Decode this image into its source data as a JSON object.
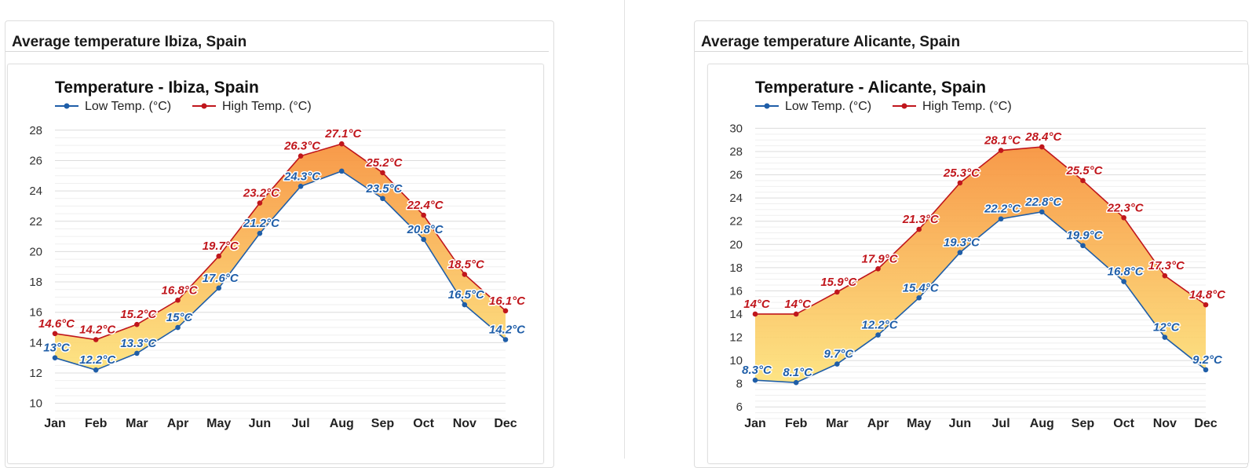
{
  "panels": [
    {
      "heading": "Average temperature Ibiza, Spain",
      "chart_title": "Temperature - Ibiza, Spain"
    },
    {
      "heading": "Average temperature Alicante, Spain",
      "chart_title": "Temperature - Alicante, Spain"
    }
  ],
  "legend": {
    "low": "Low Temp. (°C)",
    "high": "High Temp. (°C)"
  },
  "colors": {
    "low": "#1f5ea8",
    "high": "#c0161c",
    "fill_top": "#f7913a",
    "fill_bottom": "#fde27a"
  },
  "chart_data": [
    {
      "type": "area",
      "title": "Temperature - Ibiza, Spain",
      "categories": [
        "Jan",
        "Feb",
        "Mar",
        "Apr",
        "May",
        "Jun",
        "Jul",
        "Aug",
        "Sep",
        "Oct",
        "Nov",
        "Dec"
      ],
      "series": [
        {
          "name": "Low Temp. (°C)",
          "values": [
            13,
            12.2,
            13.3,
            15,
            17.6,
            21.2,
            24.3,
            25.3,
            23.5,
            20.8,
            16.5,
            14.2
          ],
          "labels": [
            "13°C",
            "12.2°C",
            "13.3°C",
            "15°C",
            "17.6°C",
            "21.2°C",
            "24.3°C",
            "",
            "23.5°C",
            "20.8°C",
            "16.5°C",
            "14.2°C"
          ]
        },
        {
          "name": "High Temp. (°C)",
          "values": [
            14.6,
            14.2,
            15.2,
            16.8,
            19.7,
            23.2,
            26.3,
            27.1,
            25.2,
            22.4,
            18.5,
            16.1
          ],
          "labels": [
            "14.6°C",
            "14.2°C",
            "15.2°C",
            "16.8°C",
            "19.7°C",
            "23.2°C",
            "26.3°C",
            "27.1°C",
            "25.2°C",
            "22.4°C",
            "18.5°C",
            "16.1°C"
          ]
        }
      ],
      "yticks": [
        10,
        12,
        14,
        16,
        18,
        20,
        22,
        24,
        26,
        28
      ],
      "ylim": [
        9,
        28.3
      ],
      "legend_position": "top-left",
      "grid": true
    },
    {
      "type": "area",
      "title": "Temperature - Alicante, Spain",
      "categories": [
        "Jan",
        "Feb",
        "Mar",
        "Apr",
        "May",
        "Jun",
        "Jul",
        "Aug",
        "Sep",
        "Oct",
        "Nov",
        "Dec"
      ],
      "series": [
        {
          "name": "Low Temp. (°C)",
          "values": [
            8.3,
            8.1,
            9.7,
            12.2,
            15.4,
            19.3,
            22.2,
            22.8,
            19.9,
            16.8,
            12,
            9.2
          ],
          "labels": [
            "8.3°C",
            "8.1°C",
            "9.7°C",
            "12.2°C",
            "15.4°C",
            "19.3°C",
            "22.2°C",
            "22.8°C",
            "19.9°C",
            "16.8°C",
            "12°C",
            "9.2°C"
          ]
        },
        {
          "name": "High Temp. (°C)",
          "values": [
            14,
            14,
            15.9,
            17.9,
            21.3,
            25.3,
            28.1,
            28.4,
            25.5,
            22.3,
            17.3,
            14.8
          ],
          "labels": [
            "14°C",
            "14°C",
            "15.9°C",
            "17.9°C",
            "21.3°C",
            "25.3°C",
            "28.1°C",
            "28.4°C",
            "25.5°C",
            "22.3°C",
            "17.3°C",
            "14.8°C"
          ]
        }
      ],
      "yticks": [
        6,
        8,
        10,
        12,
        14,
        16,
        18,
        20,
        22,
        24,
        26,
        28,
        30
      ],
      "ylim": [
        5,
        30.3
      ],
      "legend_position": "top-left",
      "grid": true
    }
  ]
}
